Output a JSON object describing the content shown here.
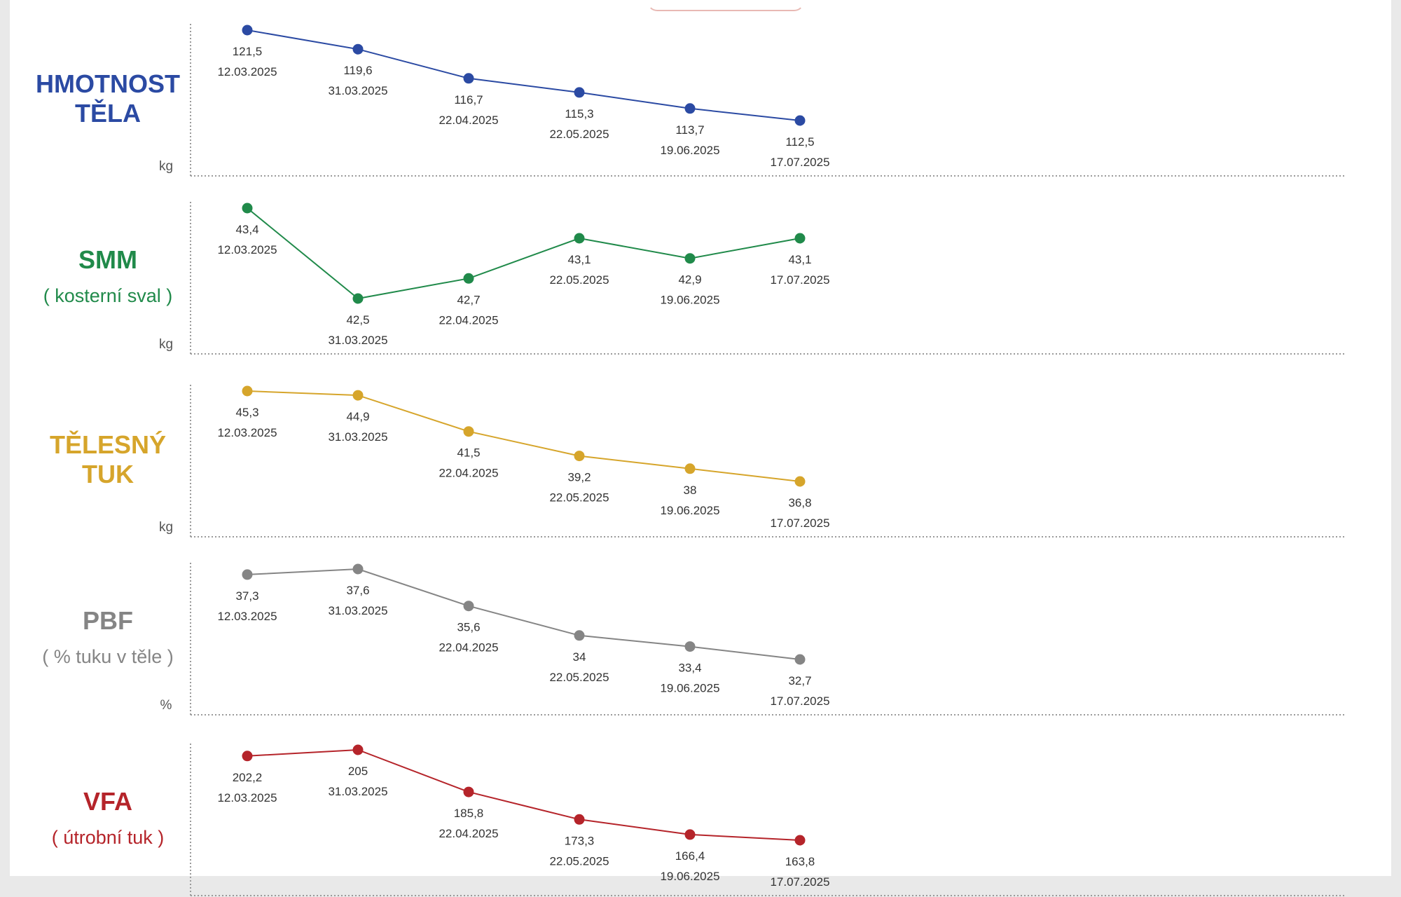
{
  "chart_data": [
    {
      "type": "line",
      "title_lines": [
        "HMOTNOST",
        "TĚLA"
      ],
      "subtitle": "",
      "unit": "kg",
      "color": "#2b4aa3",
      "categories": [
        "12.03.2025",
        "31.03.2025",
        "22.04.2025",
        "22.05.2025",
        "19.06.2025",
        "17.07.2025"
      ],
      "values": [
        121.5,
        119.6,
        116.7,
        115.3,
        113.7,
        112.5
      ],
      "value_labels": [
        "121,5",
        "119,6",
        "116,7",
        "115,3",
        "113,7",
        "112,5"
      ]
    },
    {
      "type": "line",
      "title_lines": [
        "SMM"
      ],
      "subtitle": "( kosterní sval )",
      "unit": "kg",
      "color": "#208a4a",
      "categories": [
        "12.03.2025",
        "31.03.2025",
        "22.04.2025",
        "22.05.2025",
        "19.06.2025",
        "17.07.2025"
      ],
      "values": [
        43.4,
        42.5,
        42.7,
        43.1,
        42.9,
        43.1
      ],
      "value_labels": [
        "43,4",
        "42,5",
        "42,7",
        "43,1",
        "42,9",
        "43,1"
      ]
    },
    {
      "type": "line",
      "title_lines": [
        "TĚLESNÝ",
        "TUK"
      ],
      "subtitle": "",
      "unit": "kg",
      "color": "#d6a52b",
      "categories": [
        "12.03.2025",
        "31.03.2025",
        "22.04.2025",
        "22.05.2025",
        "19.06.2025",
        "17.07.2025"
      ],
      "values": [
        45.3,
        44.9,
        41.5,
        39.2,
        38,
        36.8
      ],
      "value_labels": [
        "45,3",
        "44,9",
        "41,5",
        "39,2",
        "38",
        "36,8"
      ]
    },
    {
      "type": "line",
      "title_lines": [
        "PBF"
      ],
      "subtitle": "( % tuku v těle )",
      "unit": "%",
      "color": "#858585",
      "categories": [
        "12.03.2025",
        "31.03.2025",
        "22.04.2025",
        "22.05.2025",
        "19.06.2025",
        "17.07.2025"
      ],
      "values": [
        37.3,
        37.6,
        35.6,
        34,
        33.4,
        32.7
      ],
      "value_labels": [
        "37,3",
        "37,6",
        "35,6",
        "34",
        "33,4",
        "32,7"
      ]
    },
    {
      "type": "line",
      "title_lines": [
        "VFA"
      ],
      "subtitle": "( útrobní tuk )",
      "unit": "",
      "color": "#b5242a",
      "categories": [
        "12.03.2025",
        "31.03.2025",
        "22.04.2025",
        "22.05.2025",
        "19.06.2025",
        "17.07.2025"
      ],
      "values": [
        202.2,
        205,
        185.8,
        173.3,
        166.4,
        163.8
      ],
      "value_labels": [
        "202,2",
        "205",
        "185,8",
        "173,3",
        "166,4",
        "163,8"
      ]
    }
  ]
}
